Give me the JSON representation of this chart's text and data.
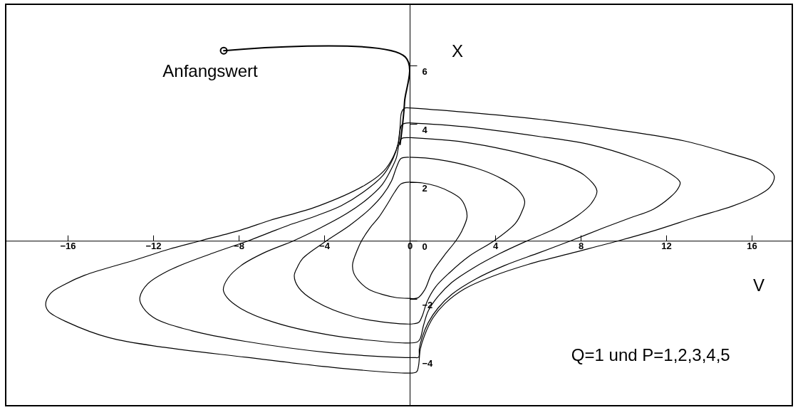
{
  "chart_data": {
    "type": "line",
    "xlabel": "V",
    "ylabel": "X",
    "annotations": [
      {
        "text": "Anfangswert",
        "x": -8.7,
        "y": 6.51
      },
      "Q=1 und P=1,2,3,4,5"
    ],
    "xlim": [
      -18.9,
      17.9
    ],
    "ylim": [
      -5.65,
      8.1
    ],
    "xticks": [
      -16,
      -12,
      -8,
      -4,
      0,
      4,
      8,
      12,
      16
    ],
    "yticks": [
      -4,
      -2,
      0,
      2,
      4,
      6
    ],
    "series": [
      {
        "color": "#000000",
        "x": [
          0.04,
          0.6,
          1.26,
          1.9,
          2.39,
          2.62,
          2.68,
          2.45,
          2.16,
          1.6,
          1.04,
          0.71,
          0.37,
          -0.07,
          -0.6,
          -1.22,
          -1.9,
          -2.35,
          -2.62,
          -2.67,
          -2.44,
          -2.25,
          -1.85,
          -1.45,
          -1.05,
          -0.7,
          -0.4,
          -0.02
        ],
        "values": [
          2.01,
          1.98,
          1.87,
          1.67,
          1.43,
          1.12,
          0.8,
          0.35,
          0,
          -0.52,
          -1.1,
          -1.67,
          -1.96,
          -1.97,
          -1.95,
          -1.85,
          -1.67,
          -1.4,
          -1.1,
          -0.8,
          -0.3,
          0,
          0.45,
          0.8,
          1.25,
          1.67,
          1.95,
          2.01
        ]
      },
      {
        "color": "#000000",
        "x": [
          0.0,
          1.28,
          3.14,
          4.37,
          5.1,
          5.38,
          5.25,
          4.95,
          3.95,
          2.8,
          1.87,
          1.21,
          0.82,
          0.59,
          0.43,
          0.2,
          -0.21,
          -2.52,
          -4.44,
          -5.2,
          -5.4,
          -5.25,
          -5.0,
          -3.89,
          -2.8,
          -1.85,
          -1.25,
          -0.85,
          -0.6,
          -0.4,
          -0.05
        ],
        "values": [
          2.86,
          2.79,
          2.48,
          2.1,
          1.72,
          1.35,
          1.0,
          0.6,
          0,
          -0.52,
          -1.09,
          -1.58,
          -2.07,
          -2.57,
          -2.79,
          -2.84,
          -2.85,
          -2.62,
          -2.06,
          -1.6,
          -1.2,
          -0.9,
          -0.6,
          0,
          0.53,
          1.1,
          1.58,
          2.05,
          2.55,
          2.82,
          2.86
        ]
      },
      {
        "color": "#000000",
        "x": [
          0.05,
          2.52,
          4.6,
          6.18,
          7.29,
          8.18,
          8.76,
          8.5,
          7.85,
          6.82,
          5.5,
          4.21,
          2.98,
          1.98,
          1.32,
          0.87,
          0.65,
          0.48,
          0.35,
          -0.21,
          -3.8,
          -6.36,
          -7.9,
          -8.54,
          -8.72,
          -8.5,
          -7.89,
          -6.78,
          -5.43,
          -4.15,
          -2.95,
          -2.0,
          -1.3,
          -0.9,
          -0.62,
          -0.5,
          -0.38,
          -0.02
        ],
        "values": [
          3.53,
          3.38,
          3.1,
          2.81,
          2.57,
          2.24,
          1.71,
          1.28,
          0.86,
          0.42,
          0,
          -0.44,
          -0.93,
          -1.42,
          -1.91,
          -2.4,
          -2.89,
          -3.37,
          -3.47,
          -3.5,
          -3.22,
          -2.79,
          -2.32,
          -1.95,
          -1.67,
          -1.28,
          -0.85,
          -0.4,
          0,
          0.45,
          0.93,
          1.42,
          1.91,
          2.4,
          2.85,
          3.3,
          3.5,
          3.53
        ]
      },
      {
        "color": "#000000",
        "x": [
          0.0,
          2.52,
          6.18,
          8.4,
          10.63,
          11.96,
          12.65,
          12.52,
          12.2,
          11.4,
          10.3,
          9.1,
          7.54,
          6.09,
          4.43,
          3.09,
          1.98,
          1.32,
          0.87,
          0.59,
          0.45,
          0.42,
          0.2,
          -0.21,
          -3.8,
          -7.65,
          -10.2,
          -12.0,
          -12.58,
          -12.62,
          -12.26,
          -11.22,
          -9.2,
          -7.55,
          -6.53,
          -5.67,
          -4.35,
          -3.2,
          -2.2,
          -1.25,
          -0.78,
          -0.55,
          -0.47,
          -0.35,
          -0.03
        ],
        "values": [
          4.04,
          3.91,
          3.56,
          3.3,
          2.81,
          2.4,
          2.0,
          1.75,
          1.5,
          1.08,
          0.78,
          0.45,
          0,
          -0.4,
          -0.85,
          -1.31,
          -1.83,
          -2.31,
          -2.8,
          -3.29,
          -3.7,
          -3.99,
          -4.0,
          -4.0,
          -3.83,
          -3.45,
          -3.08,
          -2.62,
          -2.15,
          -1.93,
          -1.48,
          -1.0,
          -0.42,
          0,
          0.29,
          0.53,
          0.86,
          1.2,
          1.65,
          2.24,
          2.81,
          3.3,
          3.7,
          3.98,
          4.04
        ]
      },
      {
        "color": "#000000",
        "x": [
          0.0,
          2.52,
          6.18,
          9.52,
          12.85,
          15.07,
          16.4,
          17.05,
          16.85,
          16.18,
          15.07,
          13.4,
          11.54,
          9.77,
          7.8,
          5.54,
          3.87,
          2.54,
          1.65,
          1.09,
          0.71,
          0.5,
          0.41,
          0.32,
          -0.21,
          -3.82,
          -7.65,
          -11.49,
          -14.06,
          -15.98,
          -16.88,
          -17.03,
          -16.8,
          -16.1,
          -15.2,
          -12.77,
          -11.22,
          -9.79,
          -7.89,
          -6.53,
          -4.31,
          -2.09,
          -1.2,
          -0.76,
          -0.52,
          -0.45,
          -0.38,
          -0.25,
          -0.03
        ],
        "values": [
          4.55,
          4.41,
          4.15,
          3.82,
          3.42,
          2.97,
          2.64,
          2.23,
          1.83,
          1.51,
          1.18,
          0.81,
          0.37,
          0,
          -0.38,
          -0.81,
          -1.22,
          -1.66,
          -2.15,
          -2.64,
          -3.21,
          -3.7,
          -4.3,
          -4.49,
          -4.53,
          -4.32,
          -3.99,
          -3.65,
          -3.32,
          -2.8,
          -2.43,
          -2.18,
          -1.8,
          -1.48,
          -1.18,
          -0.64,
          -0.28,
          0,
          0.37,
          0.7,
          1.18,
          1.91,
          2.4,
          2.89,
          3.38,
          3.9,
          4.4,
          4.54,
          4.55
        ]
      },
      {
        "color": "#000000",
        "x": [
          -8.7,
          -0.2,
          -0.24,
          -0.33,
          -0.45
        ],
        "values": [
          6.51,
          6.29,
          4.76,
          4.0,
          3.3
        ]
      },
      {
        "type": "scatter",
        "marker": "circle",
        "color": "#000000",
        "x": [
          -8.7
        ],
        "values": [
          6.51
        ]
      }
    ]
  }
}
